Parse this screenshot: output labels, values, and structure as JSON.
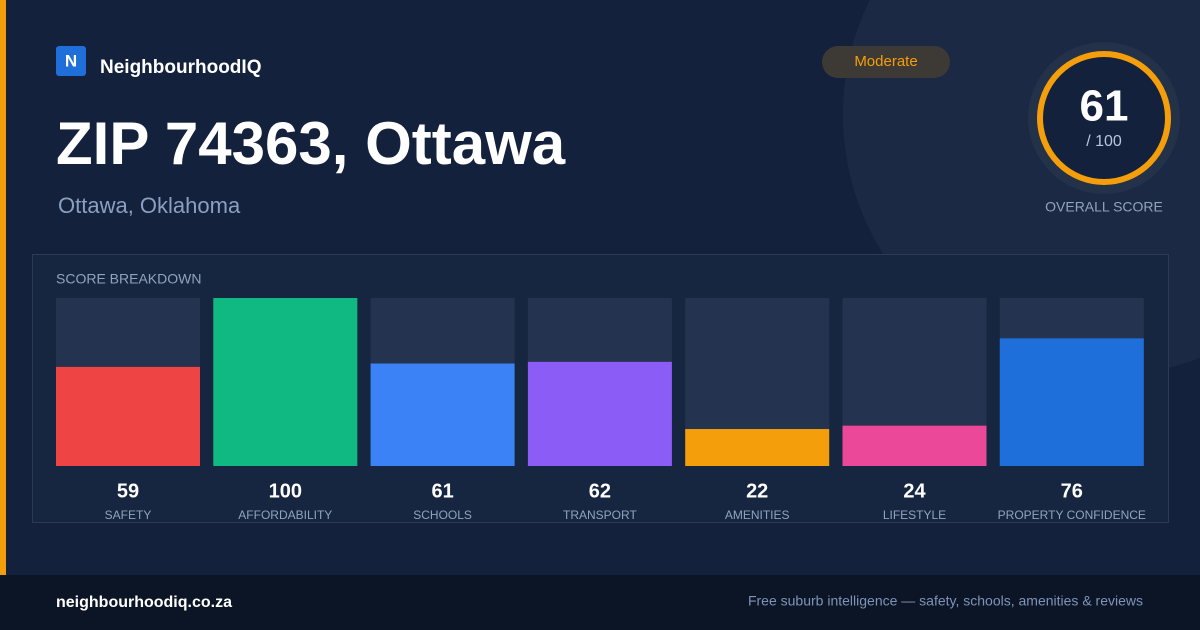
{
  "brand": {
    "logo_letter": "N",
    "name": "NeighbourhoodIQ"
  },
  "badge": "Moderate",
  "title": "ZIP 74363, Ottawa",
  "subtitle": "Ottawa, Oklahoma",
  "score": {
    "value": 61,
    "max_label": "/ 100",
    "label": "OVERALL SCORE"
  },
  "chart_data": {
    "type": "bar",
    "title": "SCORE BREAKDOWN",
    "categories": [
      "SAFETY",
      "AFFORDABILITY",
      "SCHOOLS",
      "TRANSPORT",
      "AMENITIES",
      "LIFESTYLE",
      "PROPERTY CONFIDENCE"
    ],
    "values": [
      59,
      100,
      61,
      62,
      22,
      24,
      76
    ],
    "colors": [
      "#ef4444",
      "#10b981",
      "#3b82f6",
      "#8b5cf6",
      "#f59e0b",
      "#ec4899",
      "#1f6fdb"
    ],
    "ylim": [
      0,
      100
    ]
  },
  "footer": {
    "site": "neighbourhoodiq.co.za",
    "tagline": "Free suburb intelligence — safety, schools, amenities & reviews"
  }
}
